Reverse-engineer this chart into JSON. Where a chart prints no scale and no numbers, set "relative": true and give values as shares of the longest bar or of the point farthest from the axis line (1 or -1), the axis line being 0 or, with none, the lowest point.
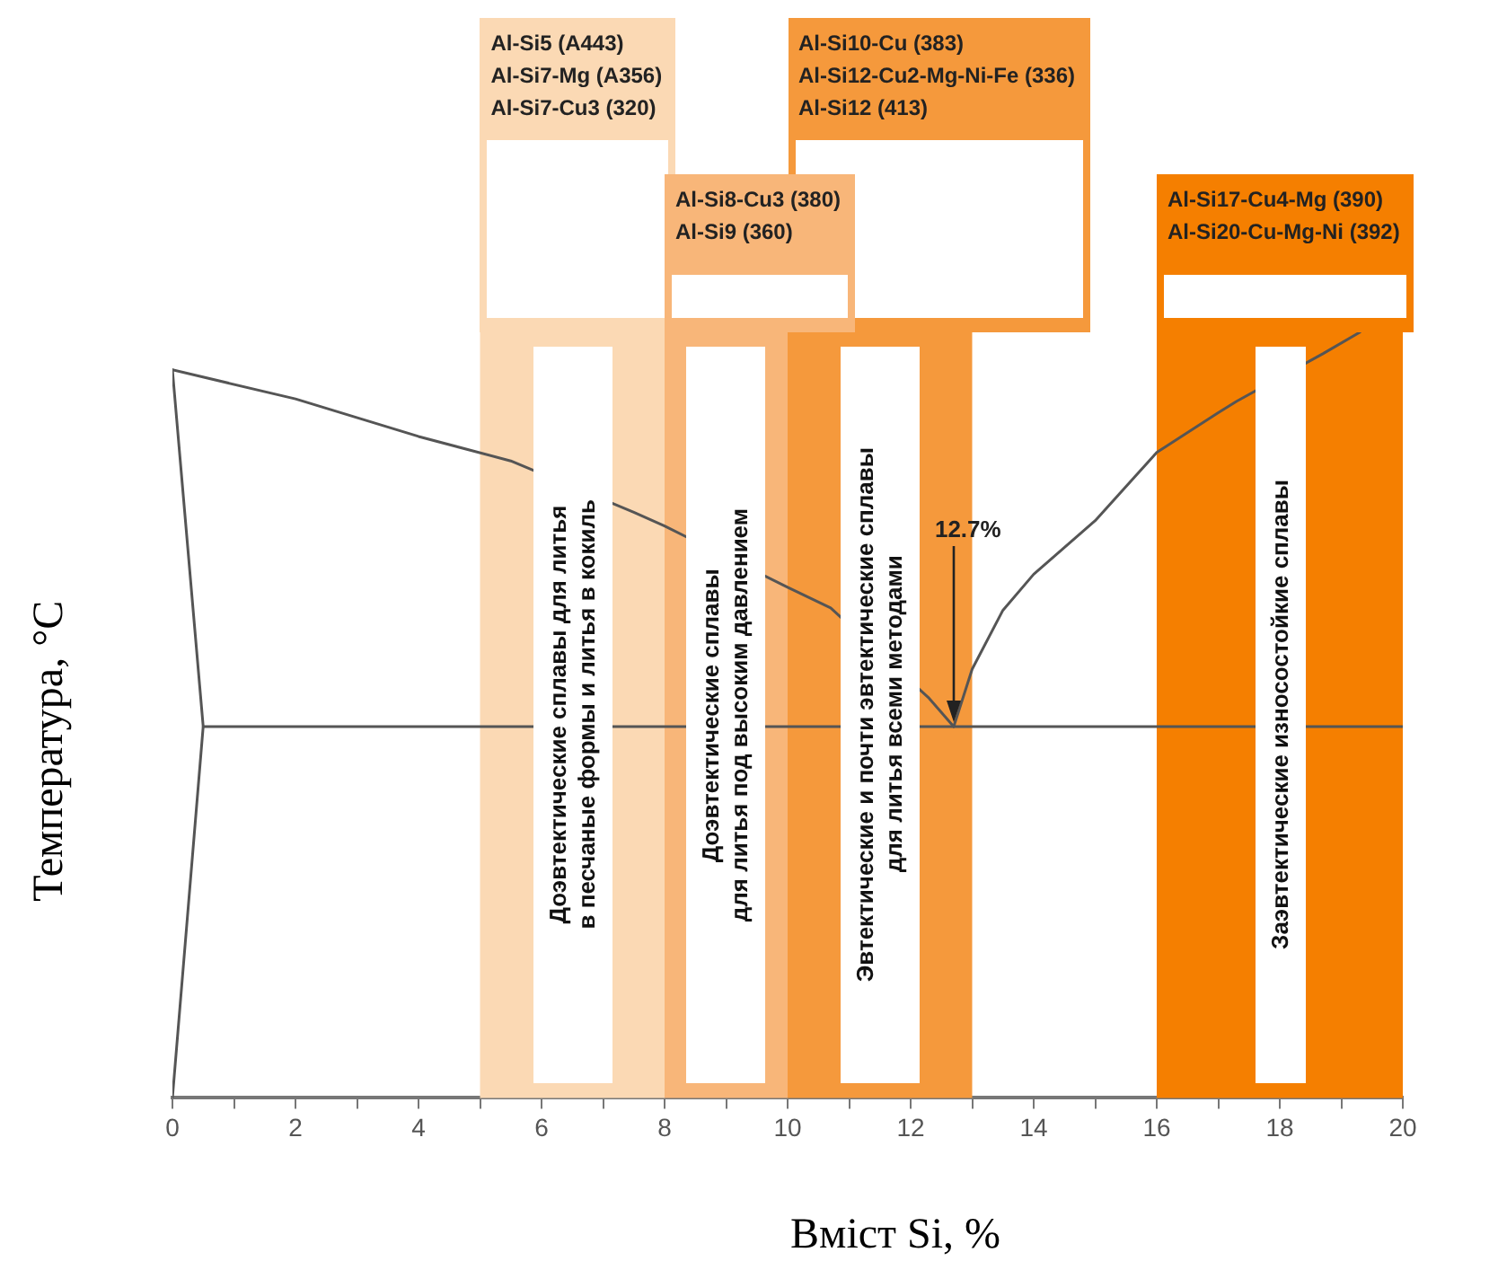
{
  "chart_data": {
    "type": "line",
    "xlabel": "Вміст Si, %",
    "ylabel": "Температура, °C",
    "relative": true,
    "legend": false,
    "marker": "none",
    "line_style": "solid",
    "xlim": [
      0,
      20
    ],
    "xticks": [
      0,
      {
        "value": 1,
        "label": null
      },
      2,
      {
        "value": 3,
        "label": null
      },
      4,
      {
        "value": 5,
        "label": null
      },
      6,
      {
        "value": 7,
        "label": null
      },
      8,
      {
        "value": 9,
        "label": null
      },
      10,
      {
        "value": 11,
        "label": null
      },
      12,
      {
        "value": 13,
        "label": null
      },
      14,
      {
        "value": 15,
        "label": null
      },
      16,
      {
        "value": 17,
        "label": null
      },
      18,
      {
        "value": 19,
        "label": null
      },
      20
    ],
    "series": [
      {
        "color": "#555555",
        "x": [
          0,
          2,
          4,
          5.5,
          7.5,
          8,
          10,
          10.7,
          12.3,
          12.7
        ],
        "values": [
          0.951,
          0.913,
          0.864,
          0.832,
          0.765,
          0.747,
          0.667,
          0.64,
          0.522,
          0.485
        ]
      },
      {
        "color": "#555555",
        "x": [
          12.7,
          13,
          13.5,
          14,
          15,
          16,
          17,
          17.3,
          18.7,
          19.3
        ],
        "values": [
          0.485,
          0.56,
          0.637,
          0.684,
          0.754,
          0.843,
          0.895,
          0.91,
          0.972,
          1
        ]
      },
      {
        "color": "#555555",
        "x": [
          0,
          0.5,
          0
        ],
        "values": [
          0.951,
          0.485,
          0
        ]
      },
      {
        "color": "#555555",
        "x": [
          0.5,
          20
        ],
        "values": [
          0.485,
          0.485
        ]
      }
    ],
    "bands": [
      {
        "axis": "x",
        "from": 5,
        "to": 8,
        "color": "#fbd9b4",
        "label": "Доэвтектические сплавы для литья\nв песчаные формы и литья в кокиль"
      },
      {
        "axis": "x",
        "from": 8,
        "to": 10,
        "color": "#f8b679",
        "label": "Доэвтектические сплавы\nдля литья под высоким давлением"
      },
      {
        "axis": "x",
        "from": 10,
        "to": 13,
        "color": "#f5993c",
        "label": "Эвтектические и почти эвтектические сплавы\nдля литья всеми методами"
      },
      {
        "axis": "x",
        "from": 16,
        "to": 20,
        "color": "#f57f00",
        "label": "Заэвтектические износостойкие сплавы"
      }
    ],
    "annotations": [
      "Al-Si5 (A443)\nAl-Si7-Mg (A356)\nAl-Si7-Cu3 (320)",
      "Al-Si8-Cu3 (380)\nAl-Si9 (360)",
      "Al-Si10-Cu (383)\nAl-Si12-Cu2-Mg-Ni-Fe (336)\nAl-Si12 (413)",
      "Al-Si17-Cu4-Mg (390)\nAl-Si20-Cu-Mg-Ni (392)",
      "12.7%"
    ]
  }
}
